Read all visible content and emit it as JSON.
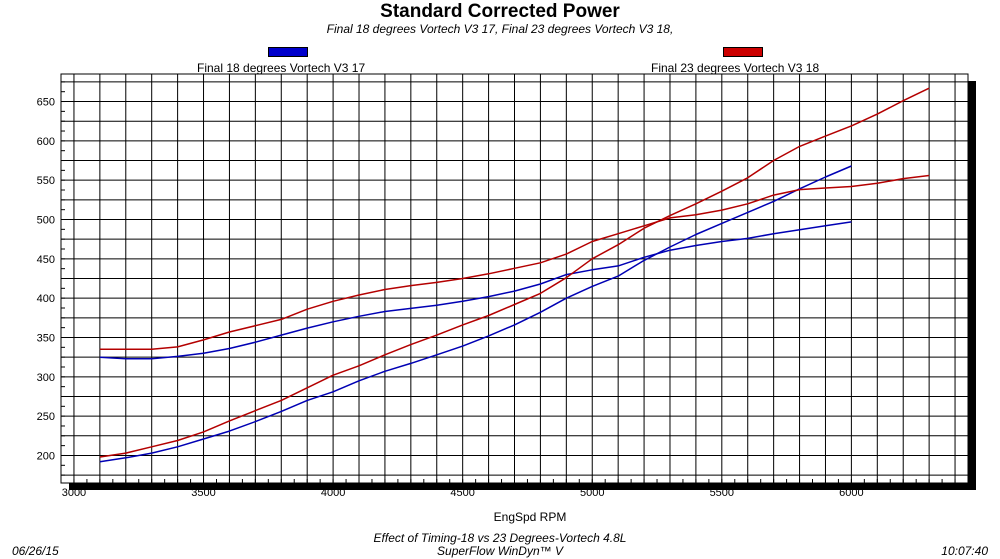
{
  "chart_data": {
    "type": "line",
    "title": "Standard Corrected Power",
    "subtitle": "Final 18 degrees Vortech V3 17,  Final 23 degrees Vortech V3 18,",
    "xlabel": "EngSpd RPM",
    "ylabel": "",
    "xlim": [
      2950,
      6450
    ],
    "ylim": [
      165,
      685
    ],
    "xticks": [
      3000,
      3500,
      4000,
      4500,
      5000,
      5500,
      6000
    ],
    "yticks": [
      200,
      250,
      300,
      350,
      400,
      450,
      500,
      550,
      600,
      650
    ],
    "grid": true,
    "legend_position": "top",
    "series": [
      {
        "name": "Final 18 degrees Vortech V3 17",
        "color": "#0000b4",
        "swatch_color": "#0000cc",
        "lines": [
          {
            "x": [
              3100,
              3200,
              3300,
              3400,
              3500,
              3600,
              3700,
              3800,
              3900,
              4000,
              4100,
              4200,
              4300,
              4400,
              4500,
              4600,
              4700,
              4800,
              4900,
              5000,
              5100,
              5200,
              5300,
              5400,
              5500,
              5600,
              5700,
              5800,
              5900,
              6000
            ],
            "y": [
              325,
              323,
              323,
              326,
              330,
              336,
              344,
              353,
              362,
              370,
              377,
              383,
              387,
              391,
              396,
              402,
              409,
              418,
              430,
              436,
              441,
              452,
              461,
              467,
              472,
              476,
              482,
              487,
              492,
              497
            ]
          },
          {
            "x": [
              3100,
              3200,
              3300,
              3400,
              3500,
              3600,
              3700,
              3800,
              3900,
              4000,
              4100,
              4200,
              4300,
              4400,
              4500,
              4600,
              4700,
              4800,
              4900,
              5000,
              5100,
              5200,
              5300,
              5400,
              5500,
              5600,
              5700,
              5800,
              5900,
              6000
            ],
            "y": [
              192,
              197,
              203,
              211,
              221,
              231,
              243,
              256,
              270,
              281,
              295,
              307,
              317,
              328,
              339,
              352,
              366,
              382,
              400,
              415,
              428,
              448,
              465,
              481,
              495,
              509,
              523,
              539,
              554,
              568
            ]
          }
        ]
      },
      {
        "name": "Final 23 degrees Vortech V3 18",
        "color": "#b40000",
        "swatch_color": "#cc0000",
        "lines": [
          {
            "x": [
              3100,
              3200,
              3300,
              3400,
              3500,
              3600,
              3700,
              3800,
              3900,
              4000,
              4100,
              4200,
              4300,
              4400,
              4500,
              4600,
              4700,
              4800,
              4900,
              5000,
              5100,
              5200,
              5300,
              5400,
              5500,
              5600,
              5700,
              5800,
              5900,
              6000,
              6100,
              6200,
              6300
            ],
            "y": [
              335,
              335,
              335,
              338,
              347,
              357,
              365,
              373,
              386,
              396,
              404,
              411,
              416,
              420,
              425,
              431,
              438,
              445,
              456,
              472,
              482,
              492,
              502,
              506,
              512,
              520,
              531,
              538,
              540,
              542,
              546,
              552,
              556
            ]
          },
          {
            "x": [
              3100,
              3200,
              3300,
              3400,
              3500,
              3600,
              3700,
              3800,
              3900,
              4000,
              4100,
              4200,
              4300,
              4400,
              4500,
              4600,
              4700,
              4800,
              4900,
              5000,
              5100,
              5200,
              5300,
              5400,
              5500,
              5600,
              5700,
              5800,
              5900,
              6000,
              6100,
              6200,
              6300
            ],
            "y": [
              198,
              203,
              211,
              219,
              230,
              244,
              257,
              270,
              286,
              302,
              314,
              328,
              341,
              353,
              366,
              378,
              392,
              406,
              426,
              450,
              468,
              489,
              505,
              520,
              536,
              553,
              575,
              593,
              606,
              619,
              634,
              651,
              667
            ]
          }
        ]
      }
    ]
  },
  "footer": {
    "test_name": "Effect of Timing-18 vs 23 Degrees-Vortech 4.8L",
    "software": "SuperFlow WinDyn™ V",
    "date": "06/26/15",
    "time": "10:07:40"
  }
}
